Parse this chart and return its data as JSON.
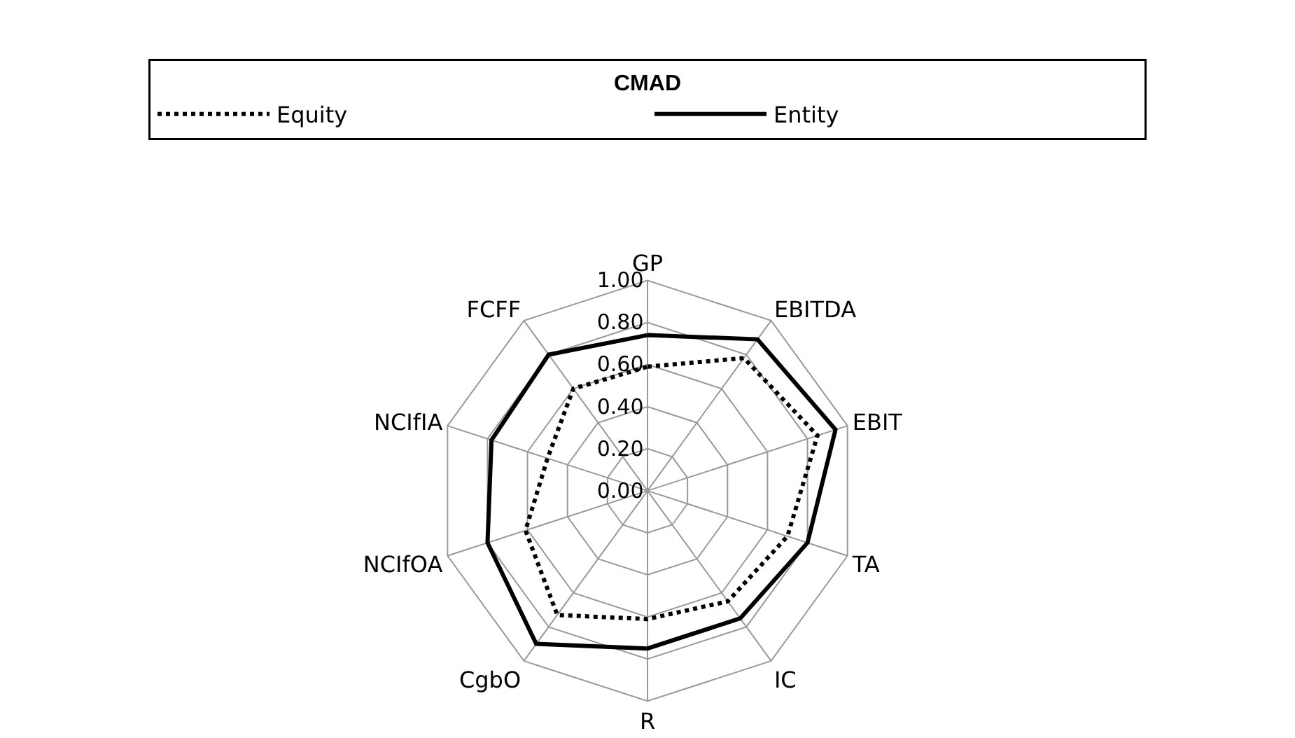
{
  "chart_data": {
    "type": "radar",
    "legend_title": "CMAD",
    "categories": [
      "GP",
      "EBITDA",
      "EBIT",
      "TA",
      "IC",
      "R",
      "CgbO",
      "NCIfOA",
      "NCIfIA",
      "FCFF"
    ],
    "series": [
      {
        "name": "Equity",
        "color": "#000000",
        "line_style": "dotted",
        "values": [
          0.59,
          0.78,
          0.85,
          0.7,
          0.65,
          0.61,
          0.73,
          0.61,
          0.5,
          0.6
        ]
      },
      {
        "name": "Entity",
        "color": "#000000",
        "line_style": "solid",
        "values": [
          0.74,
          0.89,
          0.94,
          0.8,
          0.75,
          0.75,
          0.9,
          0.8,
          0.78,
          0.8
        ]
      }
    ],
    "ylim": [
      0,
      1
    ],
    "yticks": [
      {
        "value": 0,
        "label": "0.00"
      },
      {
        "value": 0.2,
        "label": "0.20"
      },
      {
        "value": 0.4,
        "label": "0.40"
      },
      {
        "value": 0.6,
        "label": "0.60"
      },
      {
        "value": 0.8,
        "label": "0.80"
      },
      {
        "value": 1,
        "label": "1.00"
      }
    ],
    "grid": true,
    "legend": "top",
    "marker": "none"
  }
}
